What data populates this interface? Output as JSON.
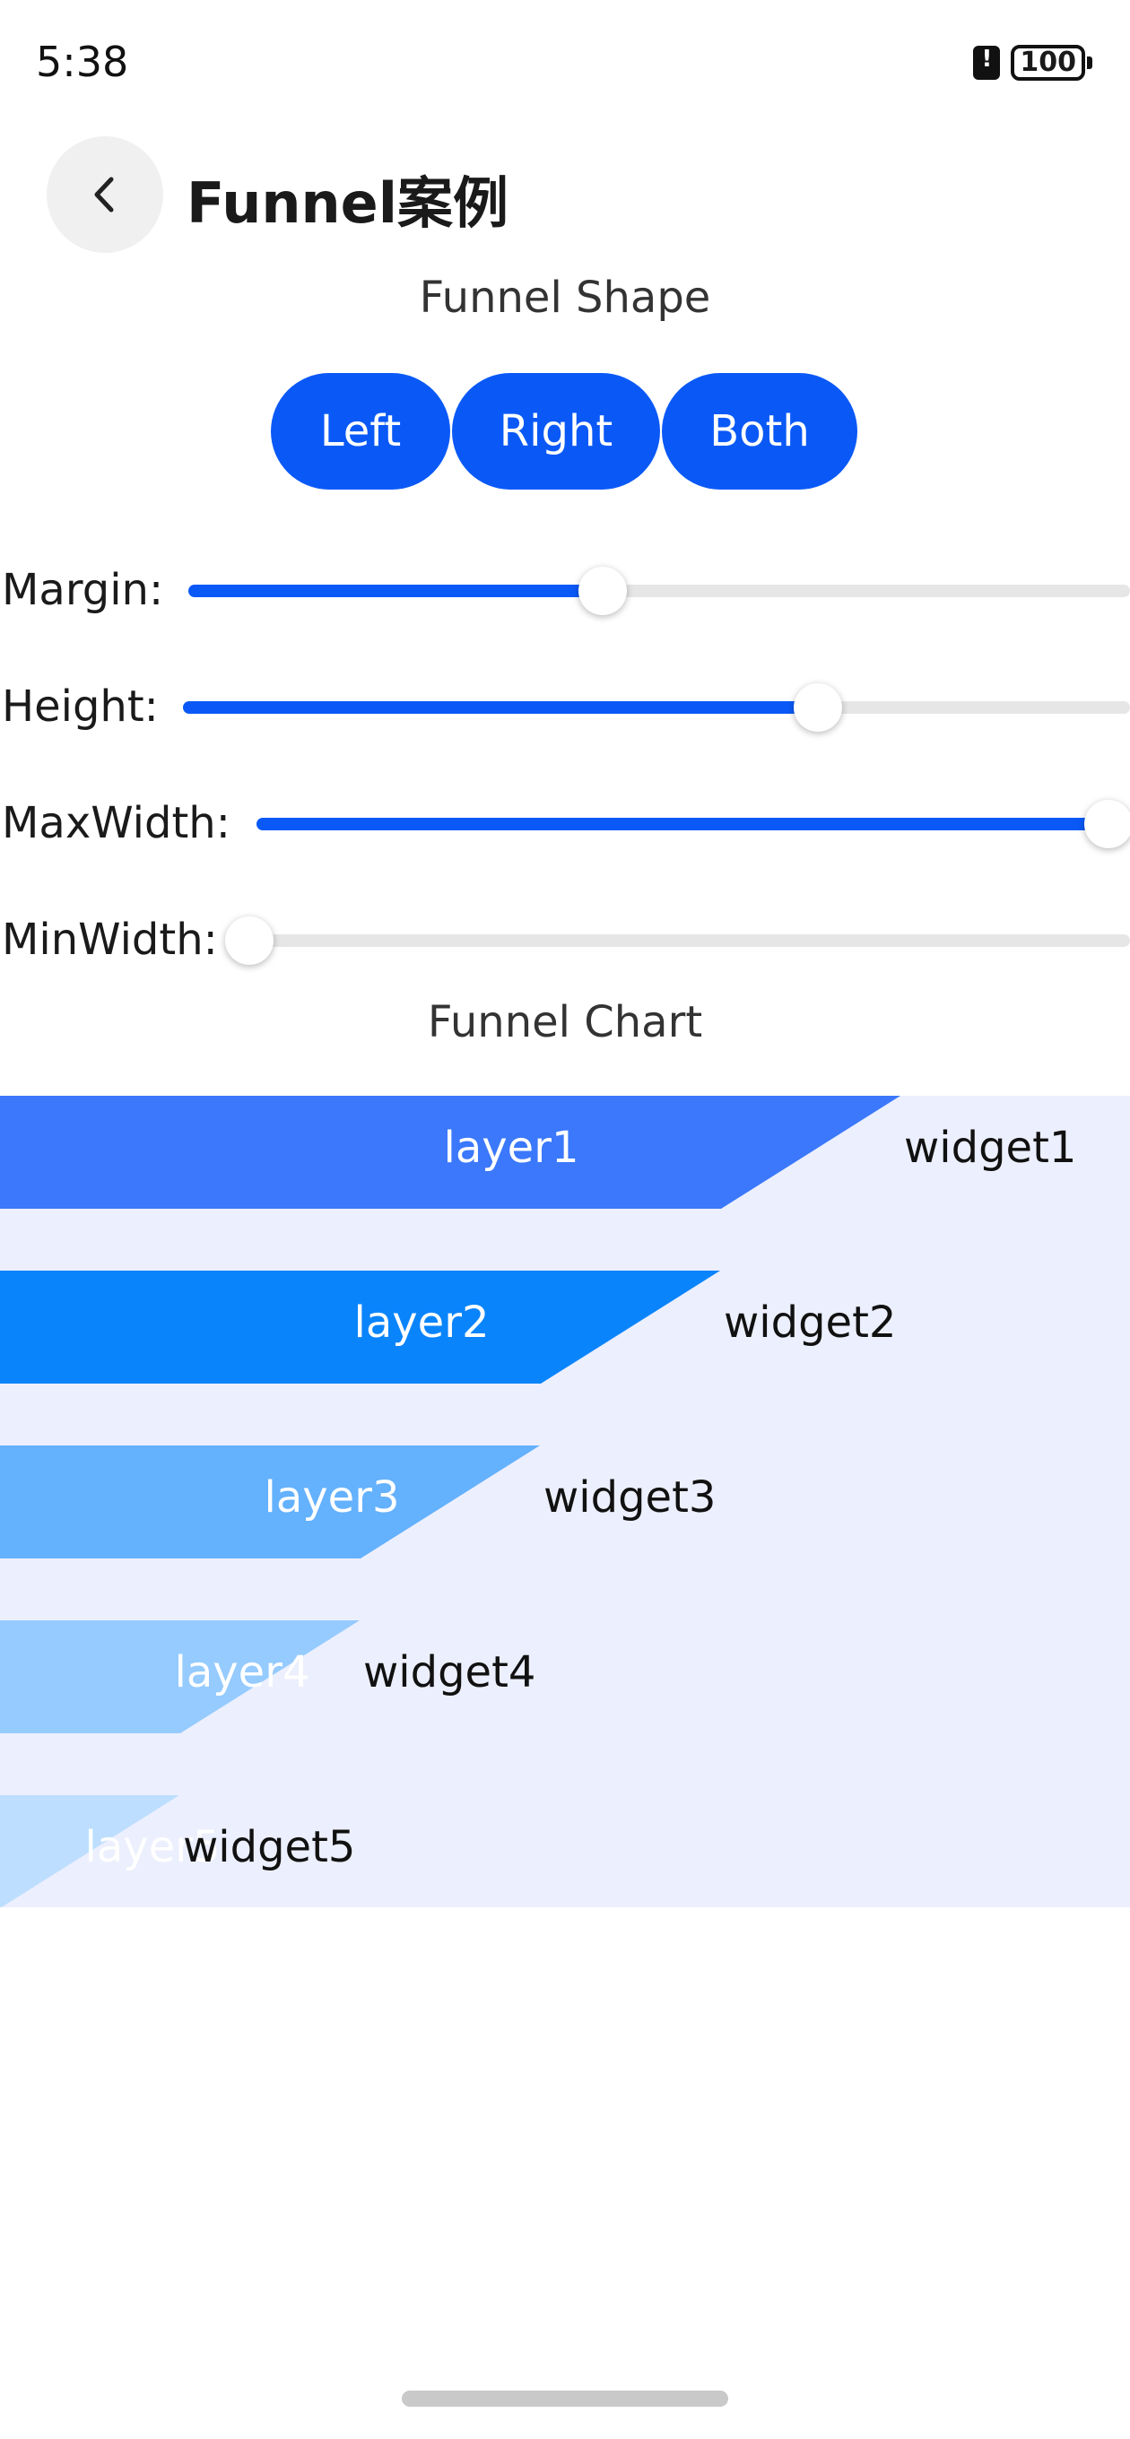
{
  "status_bar": {
    "time": "5:38",
    "battery": "100"
  },
  "header": {
    "title": "Funnel案例",
    "back_icon": "chevron-left-icon"
  },
  "funnel_shape": {
    "title": "Funnel Shape",
    "buttons": [
      "Left",
      "Right",
      "Both"
    ],
    "button_color": "#0a59f7"
  },
  "sliders": [
    {
      "label": "Margin:",
      "value_fraction": 0.44
    },
    {
      "label": "Height:",
      "value_fraction": 0.67
    },
    {
      "label": "MaxWidth:",
      "value_fraction": 1.0
    },
    {
      "label": "MinWidth:",
      "value_fraction": 0.0
    }
  ],
  "funnel_chart": {
    "title": "Funnel Chart",
    "background_color": "#eceffd",
    "layers": [
      {
        "label": "layer1",
        "widget": "widget1",
        "color": "#3b78fb"
      },
      {
        "label": "layer2",
        "widget": "widget2",
        "color": "#0a84fb"
      },
      {
        "label": "layer3",
        "widget": "widget3",
        "color": "#64b1fd"
      },
      {
        "label": "layer4",
        "widget": "widget4",
        "color": "#95cbfe"
      },
      {
        "label": "layer5",
        "widget": "widget5",
        "color": "#bddefe"
      }
    ]
  }
}
